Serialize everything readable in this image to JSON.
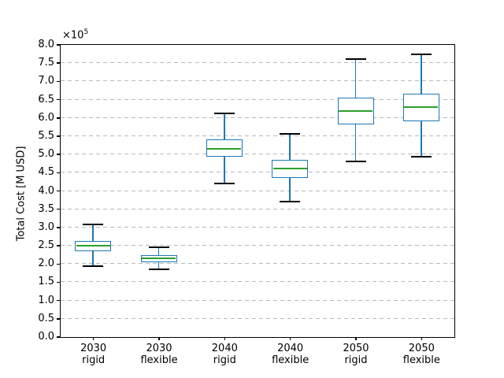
{
  "chart_data": {
    "type": "box",
    "ylabel": "Total Cost [M USD]",
    "y_offset_label": {
      "base": "×10",
      "exp": "5"
    },
    "ylim": [
      0.0,
      8.0
    ],
    "ytick_step": 0.5,
    "grid": true,
    "categories": [
      "2030\nrigid",
      "2030\nflexible",
      "2040\nrigid",
      "2040\nflexible",
      "2050\nrigid",
      "2050\nflexible"
    ],
    "boxes": [
      {
        "label": "2030 rigid",
        "whisker_low": 1.93,
        "q1": 2.34,
        "median": 2.49,
        "q3": 2.63,
        "whisker_high": 3.07
      },
      {
        "label": "2030 flexible",
        "whisker_low": 1.85,
        "q1": 2.04,
        "median": 2.14,
        "q3": 2.24,
        "whisker_high": 2.44
      },
      {
        "label": "2040 rigid",
        "whisker_low": 4.2,
        "q1": 4.92,
        "median": 5.14,
        "q3": 5.4,
        "whisker_high": 6.11
      },
      {
        "label": "2040 flexible",
        "whisker_low": 3.69,
        "q1": 4.35,
        "median": 4.6,
        "q3": 4.85,
        "whisker_high": 5.55
      },
      {
        "label": "2050 rigid",
        "whisker_low": 4.8,
        "q1": 5.82,
        "median": 6.18,
        "q3": 6.54,
        "whisker_high": 7.6
      },
      {
        "label": "2050 flexible",
        "whisker_low": 4.93,
        "q1": 5.9,
        "median": 6.28,
        "q3": 6.66,
        "whisker_high": 7.73
      }
    ],
    "colors": {
      "box_edge": "#1f77b4",
      "median": "#2ca02c",
      "cap": "#000000",
      "grid": "#b9b9b9",
      "background": "#ffffff",
      "text": "#000000"
    }
  }
}
